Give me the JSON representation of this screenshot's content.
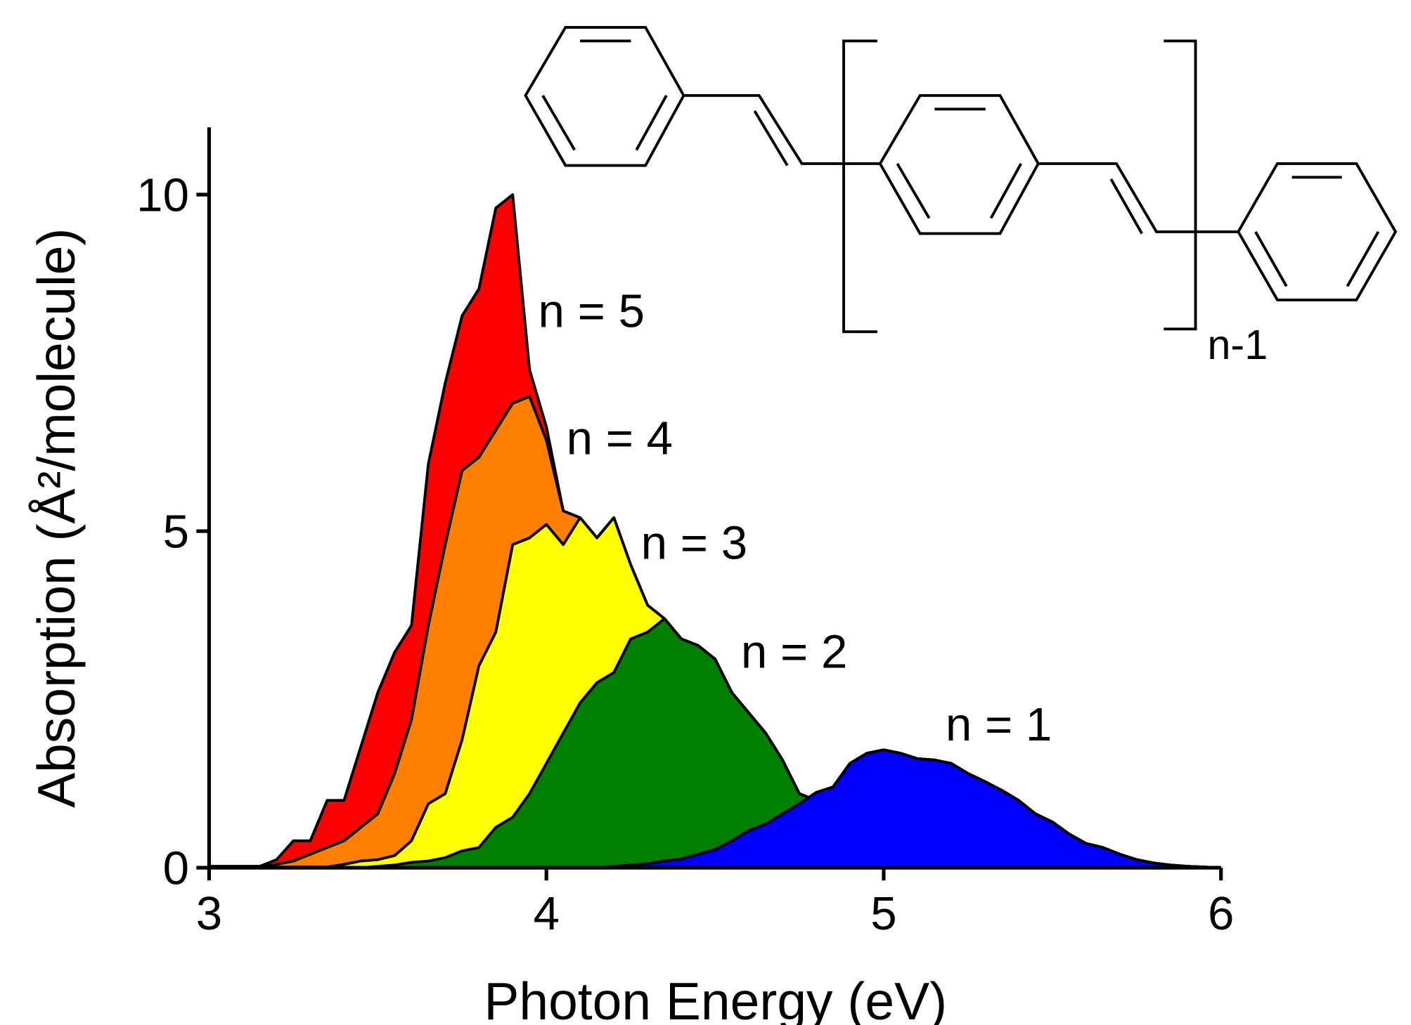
{
  "chart_data": {
    "type": "area",
    "xlabel": "Photon Energy (eV)",
    "ylabel": "Absorption (Å²/molecule)",
    "annotations": [
      "n-1"
    ],
    "x": [
      3.0,
      3.05,
      3.1,
      3.15,
      3.2,
      3.25,
      3.3,
      3.35,
      3.4,
      3.45,
      3.5,
      3.55,
      3.6,
      3.65,
      3.7,
      3.75,
      3.8,
      3.85,
      3.9,
      3.95,
      4.0,
      4.05,
      4.1,
      4.15,
      4.2,
      4.25,
      4.3,
      4.35,
      4.4,
      4.45,
      4.5,
      4.55,
      4.6,
      4.65,
      4.7,
      4.75,
      4.8,
      4.85,
      4.9,
      4.95,
      5.0,
      5.05,
      5.1,
      5.15,
      5.2,
      5.25,
      5.3,
      5.35,
      5.4,
      5.45,
      5.5,
      5.55,
      5.6,
      5.65,
      5.7,
      5.75,
      5.8,
      5.85,
      5.9,
      5.95,
      6.0
    ],
    "series": [
      {
        "name": "n = 5",
        "color": "#ff0000",
        "values": [
          0.02,
          0.02,
          0.02,
          0.02,
          0.12,
          0.4,
          0.4,
          1.0,
          1.0,
          1.8,
          2.6,
          3.2,
          3.6,
          6.0,
          7.2,
          8.2,
          8.6,
          9.8,
          10.0,
          7.4,
          6.55,
          5.3,
          5.2,
          4.9,
          5.2,
          4.5,
          3.9,
          3.7,
          3.4,
          3.3,
          3.1,
          2.6,
          2.3,
          2.0,
          1.6,
          1.1,
          1.0,
          1.2,
          1.55,
          1.7,
          1.75,
          1.7,
          1.62,
          1.6,
          1.55,
          1.4,
          1.28,
          1.15,
          1.0,
          0.8,
          0.68,
          0.5,
          0.36,
          0.3,
          0.2,
          0.12,
          0.07,
          0.04,
          0.02,
          0.01,
          0
        ]
      },
      {
        "name": "n = 4",
        "color": "#ff8000",
        "values": [
          0.02,
          0.02,
          0.02,
          0.02,
          0.05,
          0.1,
          0.2,
          0.3,
          0.4,
          0.6,
          0.8,
          1.4,
          2.2,
          3.6,
          4.8,
          5.9,
          6.1,
          6.5,
          6.9,
          7.0,
          6.35,
          5.3,
          5.2,
          4.9,
          5.2,
          4.5,
          3.9,
          3.7,
          3.4,
          3.3,
          3.1,
          2.6,
          2.3,
          2.0,
          1.6,
          1.1,
          1.0,
          1.2,
          1.55,
          1.7,
          1.75,
          1.7,
          1.62,
          1.6,
          1.55,
          1.4,
          1.28,
          1.15,
          1.0,
          0.8,
          0.68,
          0.5,
          0.36,
          0.3,
          0.2,
          0.12,
          0.07,
          0.04,
          0.02,
          0.01,
          0
        ]
      },
      {
        "name": "n = 3",
        "color": "#ffff00",
        "values": [
          0.01,
          0.01,
          0.01,
          0.01,
          0.01,
          0.01,
          0.01,
          0.01,
          0.05,
          0.1,
          0.12,
          0.18,
          0.4,
          0.95,
          1.1,
          1.9,
          3.0,
          3.5,
          4.8,
          4.9,
          5.1,
          4.8,
          5.2,
          4.9,
          5.2,
          4.5,
          3.9,
          3.7,
          3.4,
          3.3,
          3.1,
          2.6,
          2.3,
          2.0,
          1.6,
          1.1,
          1.0,
          1.2,
          1.55,
          1.7,
          1.75,
          1.7,
          1.62,
          1.6,
          1.55,
          1.4,
          1.28,
          1.15,
          1.0,
          0.8,
          0.68,
          0.5,
          0.36,
          0.3,
          0.2,
          0.12,
          0.07,
          0.04,
          0.02,
          0.01,
          0
        ]
      },
      {
        "name": "n = 2",
        "color": "#008000",
        "values": [
          0,
          0,
          0,
          0,
          0,
          0,
          0,
          0,
          0,
          0,
          0.02,
          0.04,
          0.08,
          0.1,
          0.15,
          0.25,
          0.3,
          0.6,
          0.75,
          1.1,
          1.55,
          2.0,
          2.45,
          2.75,
          2.9,
          3.4,
          3.5,
          3.7,
          3.4,
          3.3,
          3.1,
          2.6,
          2.3,
          2.0,
          1.6,
          1.1,
          1.0,
          1.2,
          1.55,
          1.7,
          1.75,
          1.7,
          1.62,
          1.6,
          1.55,
          1.4,
          1.28,
          1.15,
          1.0,
          0.8,
          0.68,
          0.5,
          0.36,
          0.3,
          0.2,
          0.12,
          0.07,
          0.04,
          0.02,
          0.01,
          0
        ]
      },
      {
        "name": "n = 1",
        "color": "#0000ff",
        "values": [
          0,
          0,
          0,
          0,
          0,
          0,
          0,
          0,
          0,
          0,
          0,
          0,
          0,
          0,
          0,
          0,
          0,
          0,
          0,
          0,
          0,
          0,
          0,
          0,
          0.02,
          0.04,
          0.06,
          0.1,
          0.13,
          0.2,
          0.27,
          0.4,
          0.55,
          0.65,
          0.8,
          0.95,
          1.12,
          1.2,
          1.55,
          1.7,
          1.75,
          1.7,
          1.62,
          1.6,
          1.55,
          1.4,
          1.28,
          1.15,
          1.0,
          0.8,
          0.68,
          0.5,
          0.36,
          0.3,
          0.2,
          0.12,
          0.07,
          0.04,
          0.02,
          0.01,
          0
        ]
      }
    ],
    "xlim": [
      3,
      6
    ],
    "ylim": [
      0,
      11
    ],
    "xticks": [
      3,
      4,
      5,
      6
    ],
    "yticks": [
      0,
      5,
      10
    ]
  }
}
